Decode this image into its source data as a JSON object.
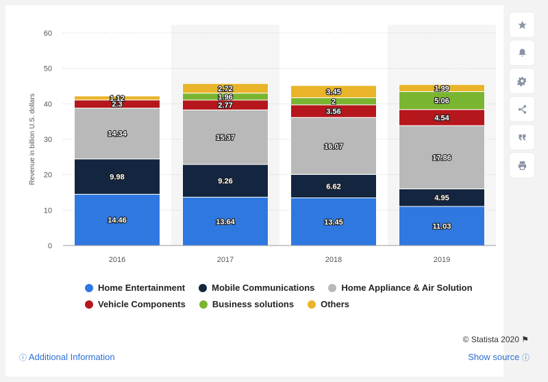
{
  "chart_data": {
    "type": "bar",
    "stacked": true,
    "categories": [
      "2016",
      "2017",
      "2018",
      "2019"
    ],
    "series": [
      {
        "name": "Home Entertainment",
        "color": "#2e78e0",
        "values": [
          14.46,
          13.64,
          13.45,
          11.03
        ],
        "labels": [
          "14.46",
          "13.64",
          "13.45",
          "11.03"
        ]
      },
      {
        "name": "Mobile Communications",
        "color": "#14263f",
        "values": [
          9.98,
          9.26,
          6.62,
          4.95
        ],
        "labels": [
          "9.98",
          "9.26",
          "6.62",
          "4.95"
        ]
      },
      {
        "name": "Home Appliance & Air Solution",
        "color": "#b9b9b9",
        "values": [
          14.34,
          15.37,
          16.07,
          17.86
        ],
        "labels": [
          "14.34",
          "15.37",
          "16.07",
          "17.86"
        ]
      },
      {
        "name": "Vehicle Components",
        "color": "#b5171c",
        "values": [
          2.3,
          2.77,
          3.56,
          4.54
        ],
        "labels": [
          "2.3",
          "2.77",
          "3.56",
          "4.54"
        ]
      },
      {
        "name": "Business solutions",
        "color": "#7ab531",
        "values": [
          0,
          1.96,
          2,
          5.06
        ],
        "labels": [
          "",
          "1.96",
          "2",
          "5.06"
        ]
      },
      {
        "name": "Others",
        "color": "#e9b42a",
        "values": [
          1.12,
          2.72,
          3.45,
          1.99
        ],
        "labels": [
          "1.12",
          "2.72",
          "3.45",
          "1.99"
        ]
      }
    ],
    "ylabel": "Revenue in billion U.S. dollars",
    "ylim": [
      0,
      60
    ],
    "yticks": [
      "0",
      "10",
      "20",
      "30",
      "40",
      "50",
      "60"
    ],
    "grid": true
  },
  "footer": {
    "copyright": "© Statista 2020",
    "additional_info": "Additional Information",
    "show_source": "Show source"
  },
  "sidebar_icons": [
    "star-icon",
    "bell-icon",
    "gear-icon",
    "share-icon",
    "quote-icon",
    "print-icon"
  ]
}
